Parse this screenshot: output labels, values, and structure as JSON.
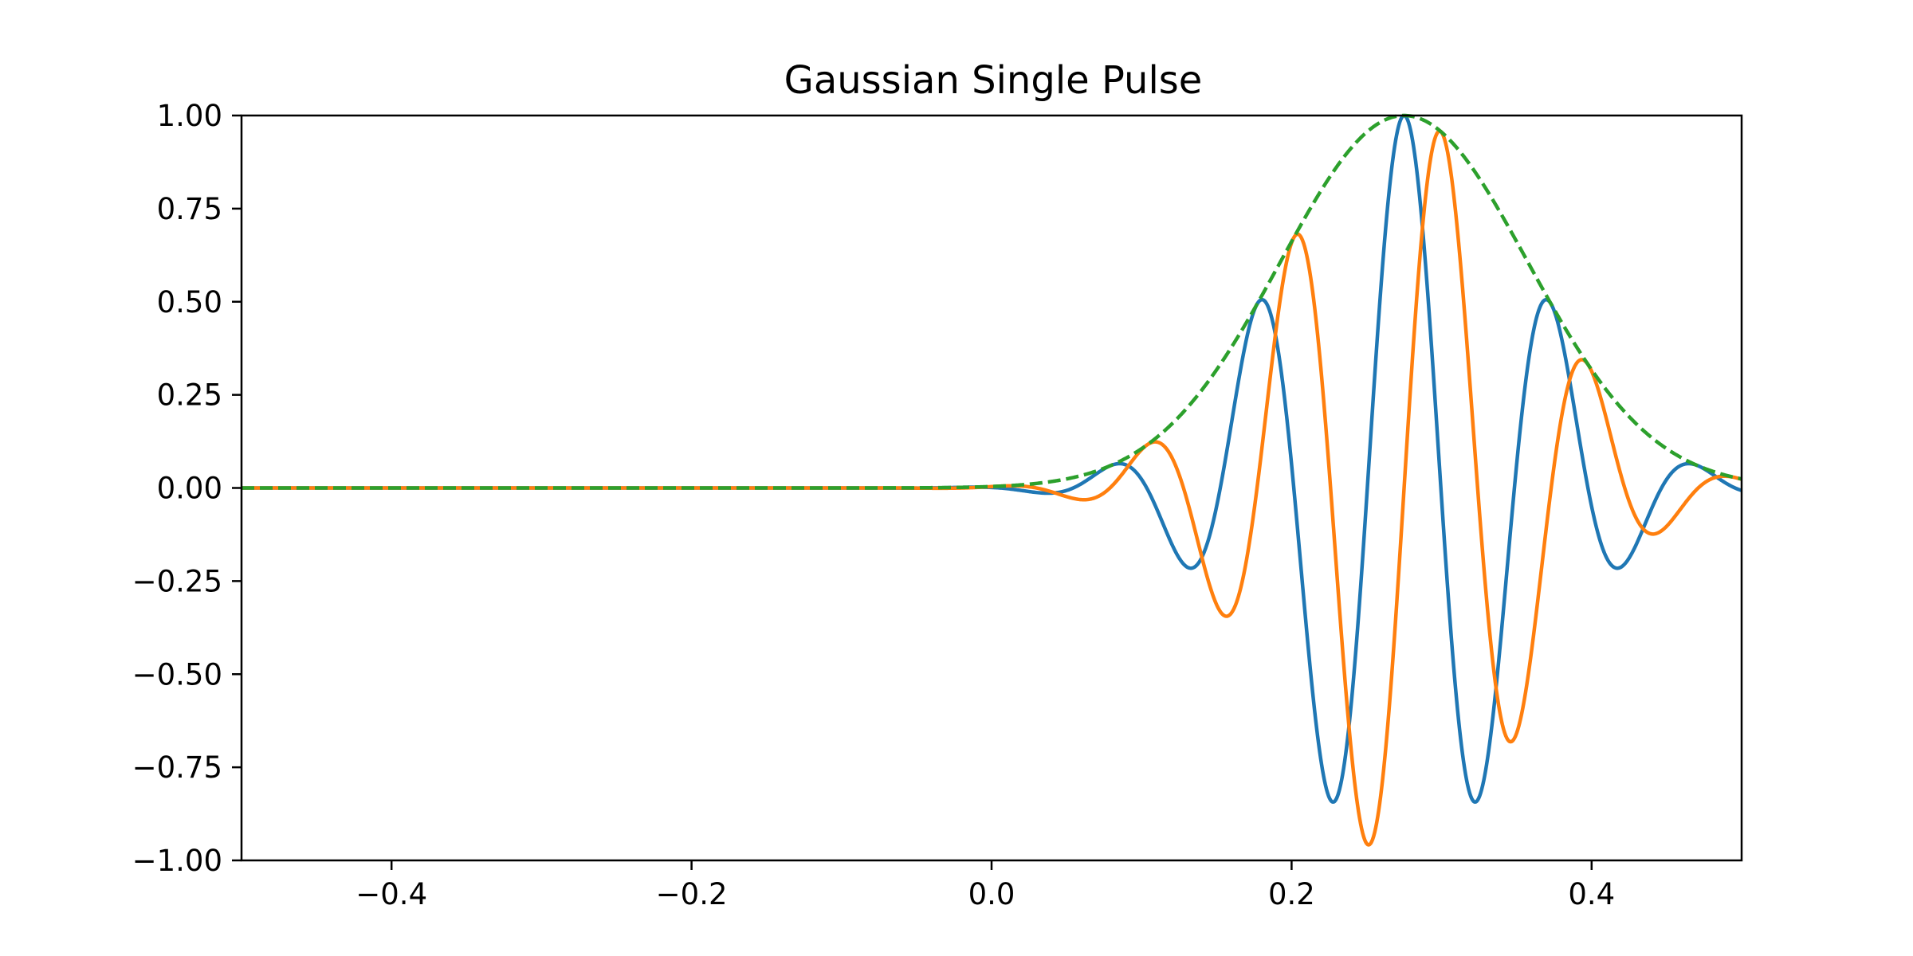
{
  "chart_data": {
    "type": "line",
    "title": "Gaussian Single Pulse",
    "xlabel": "",
    "ylabel": "",
    "xlim": [
      -0.5,
      0.5
    ],
    "ylim": [
      -1.0,
      1.0
    ],
    "grid": false,
    "legend": "none",
    "x_ticks": [
      -0.4,
      -0.2,
      0.0,
      0.2,
      0.4
    ],
    "x_tick_labels": [
      "−0.4",
      "−0.2",
      "0.0",
      "0.2",
      "0.4"
    ],
    "y_ticks": [
      -1.0,
      -0.75,
      -0.5,
      -0.25,
      0.0,
      0.25,
      0.5,
      0.75,
      1.0
    ],
    "y_tick_labels": [
      "−1.00",
      "−0.75",
      "−0.50",
      "−0.25",
      "0.00",
      "0.25",
      "0.50",
      "0.75",
      "1.00"
    ],
    "pulse": {
      "center": 0.275,
      "carrier_frequency": 10.2,
      "envelope_sigma": 0.0825
    },
    "series": [
      {
        "style": "solid",
        "color": "#1f77b4",
        "x": [
          -0.5,
          -0.4,
          -0.3,
          -0.2,
          -0.1,
          0.0,
          0.04,
          0.08,
          0.13,
          0.178,
          0.227,
          0.275,
          0.323,
          0.372,
          0.42,
          0.46,
          0.5
        ],
        "y": [
          0.0,
          0.0,
          0.0,
          0.0,
          0.0,
          0.0,
          0.0,
          0.03,
          -0.14,
          0.43,
          -0.81,
          1.0,
          -0.81,
          0.43,
          -0.14,
          0.03,
          0.0
        ]
      },
      {
        "style": "solid",
        "color": "#ff7f0e",
        "x": [
          -0.5,
          -0.4,
          -0.3,
          -0.2,
          -0.1,
          0.0,
          0.06,
          0.107,
          0.154,
          0.203,
          0.251,
          0.299,
          0.348,
          0.396,
          0.445,
          0.5
        ],
        "y": [
          0.0,
          0.0,
          0.0,
          0.0,
          0.0,
          0.0,
          -0.01,
          0.07,
          -0.26,
          0.62,
          -0.95,
          0.95,
          -0.62,
          0.26,
          -0.07,
          0.02
        ]
      },
      {
        "style": "dashed",
        "color": "#2ca02c",
        "x": [
          -0.5,
          -0.4,
          -0.3,
          -0.2,
          -0.1,
          0.0,
          0.05,
          0.1,
          0.15,
          0.2,
          0.25,
          0.275,
          0.3,
          0.35,
          0.4,
          0.45,
          0.5
        ],
        "y": [
          0.0,
          0.0,
          0.0,
          0.0,
          0.0,
          0.0,
          0.02,
          0.07,
          0.23,
          0.56,
          0.95,
          1.0,
          0.95,
          0.62,
          0.28,
          0.08,
          0.02
        ]
      }
    ]
  }
}
